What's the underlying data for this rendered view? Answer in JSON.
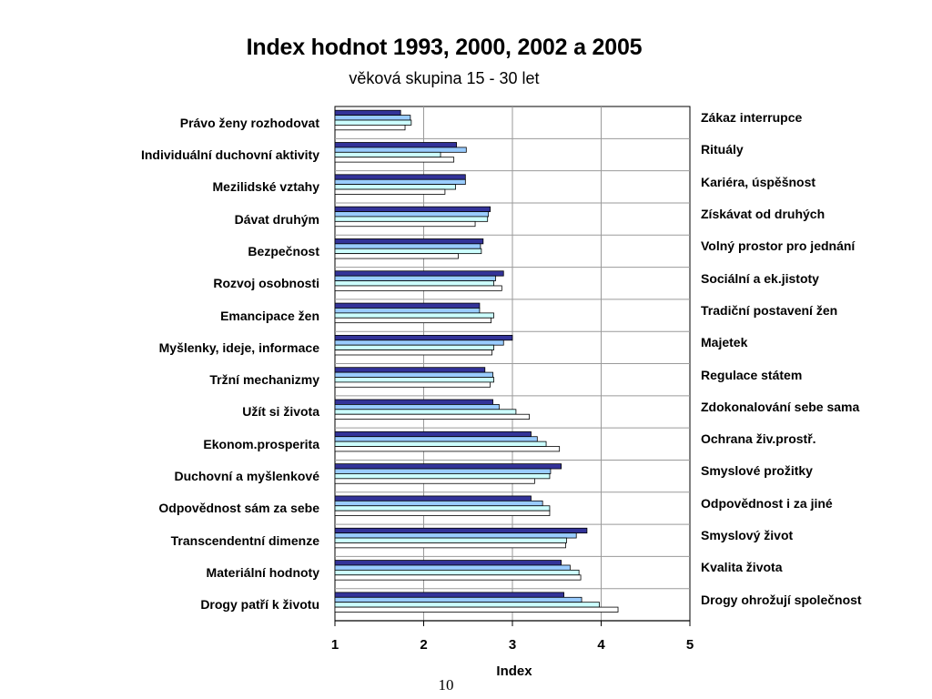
{
  "slide": {
    "page_number": "10"
  },
  "chart_data": {
    "type": "bar",
    "orientation": "horizontal",
    "title": "Index hodnot 1993, 2000, 2002 a 2005",
    "subtitle": "věková skupina 15 - 30 let",
    "xlabel": "Index",
    "xlim": [
      1,
      5
    ],
    "xticks": [
      "1",
      "2",
      "3",
      "4",
      "5"
    ],
    "grid": true,
    "legend": "none",
    "categories": [
      "Právo ženy rozhodovat",
      "Individuální duchovní aktivity",
      "Mezilidské vztahy",
      "Dávat druhým",
      "Bezpečnost",
      "Rozvoj osobnosti",
      "Emancipace žen",
      "Myšlenky, ideje, informace",
      "Tržní mechanizmy",
      "Užít si života",
      "Ekonom.prosperita",
      "Duchovní a myšlenkové",
      "Odpovědnost sám za sebe",
      "Transcendentní dimenze",
      "Materiální hodnoty",
      "Drogy patří k životu"
    ],
    "right_categories": [
      "Zákaz interrupce",
      "Rituály",
      "Kariéra, úspěšnost",
      "Získávat od druhých",
      "Volný prostor pro jednání",
      "Sociální a ek.jistoty",
      "Tradiční postavení žen",
      "Majetek",
      "Regulace státem",
      "Zdokonalování sebe sama",
      "Ochrana živ.prostř.",
      "Smyslové prožitky",
      "Odpovědnost i za jiné",
      "Smyslový život",
      "Kvalita života",
      "Drogy ohrožují společnost"
    ],
    "series": [
      {
        "color": "#333399",
        "values": [
          1.74,
          2.37,
          2.47,
          2.75,
          2.67,
          2.9,
          2.63,
          3.0,
          2.69,
          2.78,
          3.21,
          3.55,
          3.21,
          3.84,
          3.55,
          3.58
        ]
      },
      {
        "color": "#99CCFF",
        "values": [
          1.85,
          2.48,
          2.47,
          2.73,
          2.64,
          2.81,
          2.63,
          2.9,
          2.78,
          2.85,
          3.28,
          3.43,
          3.34,
          3.72,
          3.65,
          3.78
        ]
      },
      {
        "color": "#CCFFFF",
        "values": [
          1.86,
          2.19,
          2.36,
          2.72,
          2.65,
          2.79,
          2.79,
          2.79,
          2.79,
          3.04,
          3.38,
          3.42,
          3.42,
          3.61,
          3.75,
          3.98
        ]
      },
      {
        "color": "#FFFFFF",
        "values": [
          1.79,
          2.34,
          2.24,
          2.58,
          2.39,
          2.88,
          2.76,
          2.77,
          2.75,
          3.19,
          3.53,
          3.25,
          3.42,
          3.6,
          3.77,
          4.19
        ]
      }
    ]
  }
}
